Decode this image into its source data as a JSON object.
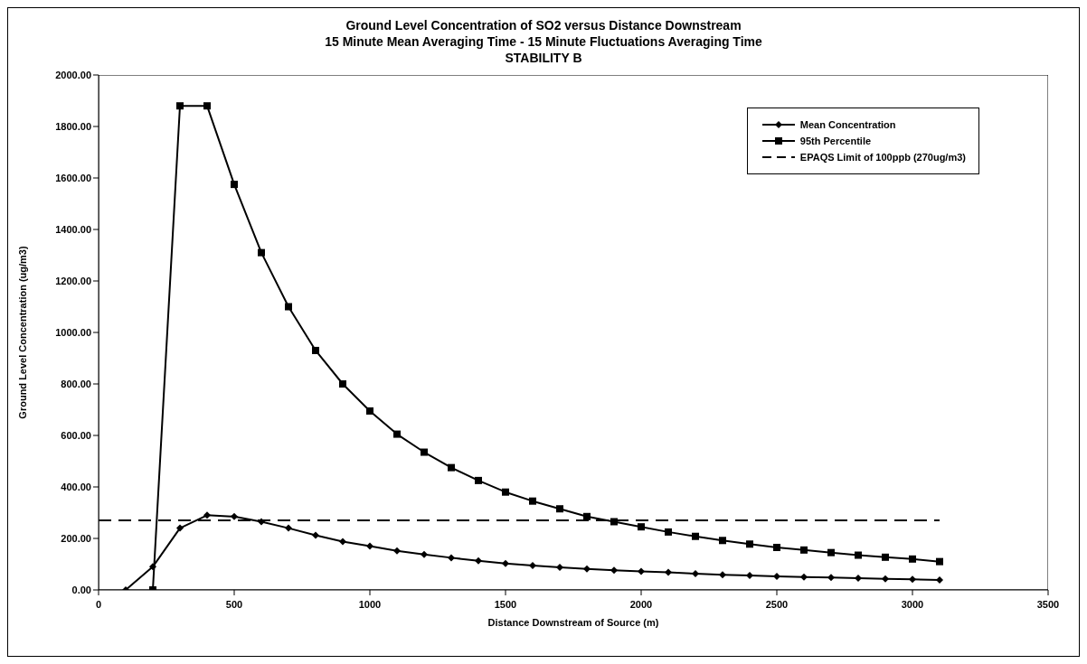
{
  "chart_data": {
    "type": "line",
    "title": "Ground Level Concentration of SO2 versus Distance Downstream\n15 Minute Mean Averaging Time - 15 Minute Fluctuations Averaging Time\nSTABILITY B",
    "xlabel": "Distance Downstream of Source (m)",
    "ylabel": "Ground Level Concentration (ug/m3)",
    "xlim": [
      0,
      3500
    ],
    "xticks": [
      0,
      500,
      1000,
      1500,
      2000,
      2500,
      3000,
      3500
    ],
    "ylim": [
      0,
      2000
    ],
    "yticks": [
      {
        "value": 0,
        "label": "0.00"
      },
      {
        "value": 200,
        "label": "200.00"
      },
      {
        "value": 400,
        "label": "400.00"
      },
      {
        "value": 600,
        "label": "600.00"
      },
      {
        "value": 800,
        "label": "800.00"
      },
      {
        "value": 1000,
        "label": "1000.00"
      },
      {
        "value": 1200,
        "label": "1200.00"
      },
      {
        "value": 1400,
        "label": "1400.00"
      },
      {
        "value": 1600,
        "label": "1600.00"
      },
      {
        "value": 1800,
        "label": "1800.00"
      },
      {
        "value": 2000,
        "label": "2000.00"
      }
    ],
    "grid": false,
    "legend": "top right",
    "line_style": "solid",
    "series": [
      {
        "name": "Mean Concentration",
        "color": "#000000",
        "marker": "diamond",
        "x": [
          100,
          200,
          300,
          400,
          500,
          600,
          700,
          800,
          900,
          1000,
          1100,
          1200,
          1300,
          1400,
          1500,
          1600,
          1700,
          1800,
          1900,
          2000,
          2100,
          2200,
          2300,
          2400,
          2500,
          2600,
          2700,
          2800,
          2900,
          3000,
          3100
        ],
        "values": [
          0,
          90,
          240,
          290,
          285,
          265,
          240,
          212,
          188,
          170,
          152,
          138,
          125,
          113,
          103,
          95,
          88,
          82,
          76,
          72,
          68,
          63,
          59,
          56,
          53,
          50,
          48,
          46,
          43,
          41,
          39
        ]
      },
      {
        "name": "95th Percentile",
        "color": "#000000",
        "marker": "square",
        "x": [
          200,
          300,
          400,
          500,
          600,
          700,
          800,
          900,
          1000,
          1100,
          1200,
          1300,
          1400,
          1500,
          1600,
          1700,
          1800,
          1900,
          2000,
          2100,
          2200,
          2300,
          2400,
          2500,
          2600,
          2700,
          2800,
          2900,
          3000,
          3100
        ],
        "values": [
          0,
          1880,
          1880,
          1575,
          1310,
          1100,
          930,
          800,
          695,
          605,
          535,
          475,
          425,
          380,
          345,
          315,
          285,
          265,
          245,
          225,
          208,
          192,
          178,
          165,
          155,
          145,
          135,
          127,
          120,
          110
        ]
      },
      {
        "name": "EPAQS Limit of 100ppb (270ug/m3)",
        "color": "#000000",
        "marker": "none",
        "line_style": "dashed",
        "x": [
          0,
          3100
        ],
        "values": [
          270,
          270
        ]
      }
    ]
  }
}
